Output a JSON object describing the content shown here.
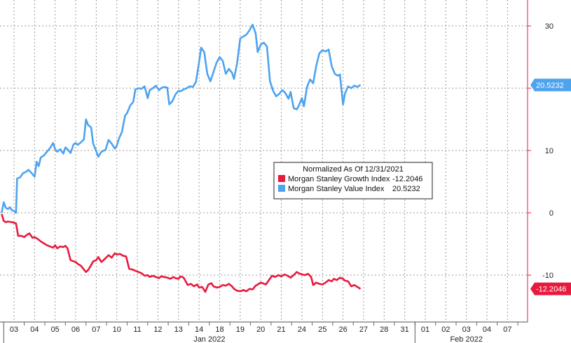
{
  "chart_data": {
    "type": "line",
    "title": "",
    "legend": {
      "title": "Normalized As Of 12/31/2021",
      "placement": "center",
      "entries": [
        {
          "label": "Morgan Stanley Growth Index",
          "value": "-12.2046",
          "color": "#e8193c"
        },
        {
          "label": "Morgan Stanley Value Index",
          "value": "20.5232",
          "color": "#4da3ee"
        }
      ]
    },
    "xlabel": "",
    "ylabel": "",
    "ylim": [
      -17,
      38
    ],
    "y_ticks": [
      -10,
      0,
      10,
      20,
      30
    ],
    "y_tick_labels": [
      "-10",
      "0",
      "10",
      "20",
      "30"
    ],
    "grid": true,
    "x_ticks": [
      "03",
      "04",
      "05",
      "06",
      "07",
      "10",
      "11",
      "12",
      "13",
      "14",
      "18",
      "19",
      "20",
      "21",
      "24",
      "25",
      "26",
      "27",
      "28",
      "31",
      "01",
      "02",
      "03",
      "04",
      "07"
    ],
    "month_labels": [
      {
        "label": "Jan 2022",
        "from": 0,
        "to": 19
      },
      {
        "label": "Feb 2022",
        "from": 20,
        "to": 24
      }
    ],
    "last_value_tags": [
      {
        "series": "Morgan Stanley Value Index",
        "label": "20.5232",
        "value": 20.5232,
        "color": "#4da3ee"
      },
      {
        "series": "Morgan Stanley Growth Index",
        "label": "-12.2046",
        "value": -12.2046,
        "color": "#e8193c"
      }
    ],
    "series": [
      {
        "name": "Morgan Stanley Value Index",
        "color": "#4da3ee",
        "points": [
          [
            -0.6,
            0
          ],
          [
            -0.5,
            1.7
          ],
          [
            -0.4,
            0.8
          ],
          [
            -0.3,
            0.6
          ],
          [
            -0.2,
            0.9
          ],
          [
            -0.1,
            0.4
          ],
          [
            0.0,
            0.3
          ],
          [
            0.1,
            0
          ],
          [
            0.15,
            5.5
          ],
          [
            0.3,
            5.7
          ],
          [
            0.45,
            6.4
          ],
          [
            0.55,
            6.5
          ],
          [
            0.7,
            6.9
          ],
          [
            0.85,
            6.4
          ],
          [
            1.0,
            5.8
          ],
          [
            1.1,
            8.2
          ],
          [
            1.2,
            7.5
          ],
          [
            1.3,
            8.9
          ],
          [
            1.45,
            9.2
          ],
          [
            1.6,
            9.8
          ],
          [
            1.75,
            10.4
          ],
          [
            1.9,
            11.2
          ],
          [
            2.0,
            10.2
          ],
          [
            2.1,
            9.8
          ],
          [
            2.25,
            10.2
          ],
          [
            2.4,
            9.5
          ],
          [
            2.5,
            10.5
          ],
          [
            2.6,
            10.2
          ],
          [
            2.75,
            9.6
          ],
          [
            2.9,
            11.0
          ],
          [
            3.0,
            11.2
          ],
          [
            3.1,
            10.9
          ],
          [
            3.25,
            11.3
          ],
          [
            3.4,
            11.8
          ],
          [
            3.5,
            15.0
          ],
          [
            3.6,
            14.1
          ],
          [
            3.75,
            13.7
          ],
          [
            3.85,
            11.1
          ],
          [
            4.0,
            9.9
          ],
          [
            4.1,
            9.0
          ],
          [
            4.25,
            9.8
          ],
          [
            4.45,
            10.1
          ],
          [
            4.6,
            11.7
          ],
          [
            4.75,
            11.1
          ],
          [
            4.9,
            10.3
          ],
          [
            5.0,
            10.8
          ],
          [
            5.1,
            11.9
          ],
          [
            5.25,
            13.0
          ],
          [
            5.4,
            15.6
          ],
          [
            5.5,
            16.0
          ],
          [
            5.65,
            17.2
          ],
          [
            5.8,
            17.8
          ],
          [
            5.9,
            19.8
          ],
          [
            6.05,
            20.0
          ],
          [
            6.2,
            19.9
          ],
          [
            6.35,
            20.3
          ],
          [
            6.5,
            18.4
          ],
          [
            6.6,
            19.7
          ],
          [
            6.75,
            20.0
          ],
          [
            6.9,
            20.4
          ],
          [
            7.05,
            19.7
          ],
          [
            7.15,
            20.0
          ],
          [
            7.3,
            20.2
          ],
          [
            7.45,
            20.1
          ],
          [
            7.55,
            17.4
          ],
          [
            7.7,
            17.9
          ],
          [
            7.85,
            19.0
          ],
          [
            8.0,
            19.6
          ],
          [
            8.1,
            19.5
          ],
          [
            8.25,
            19.8
          ],
          [
            8.4,
            20.0
          ],
          [
            8.55,
            20.3
          ],
          [
            8.7,
            20.2
          ],
          [
            8.85,
            21.0
          ],
          [
            9.0,
            24.2
          ],
          [
            9.1,
            26.5
          ],
          [
            9.25,
            25.8
          ],
          [
            9.4,
            22.3
          ],
          [
            9.55,
            21.1
          ],
          [
            9.7,
            22.6
          ],
          [
            9.85,
            24.1
          ],
          [
            10.0,
            25.0
          ],
          [
            10.15,
            24.4
          ],
          [
            10.3,
            22.3
          ],
          [
            10.45,
            23.1
          ],
          [
            10.6,
            22.5
          ],
          [
            10.7,
            21.5
          ],
          [
            10.85,
            24.0
          ],
          [
            11.0,
            28.0
          ],
          [
            11.15,
            28.3
          ],
          [
            11.3,
            28.6
          ],
          [
            11.45,
            29.3
          ],
          [
            11.6,
            30.2
          ],
          [
            11.75,
            28.8
          ],
          [
            11.85,
            25.8
          ],
          [
            12.0,
            27.0
          ],
          [
            12.15,
            27.3
          ],
          [
            12.3,
            26.7
          ],
          [
            12.45,
            21.1
          ],
          [
            12.6,
            19.6
          ],
          [
            12.75,
            18.7
          ],
          [
            12.9,
            19.1
          ],
          [
            13.05,
            19.7
          ],
          [
            13.2,
            19.2
          ],
          [
            13.35,
            18.3
          ],
          [
            13.45,
            19.4
          ],
          [
            13.6,
            16.8
          ],
          [
            13.75,
            16.6
          ],
          [
            13.85,
            17.2
          ],
          [
            14.0,
            18.4
          ],
          [
            14.1,
            17.1
          ],
          [
            14.25,
            20.2
          ],
          [
            14.4,
            21.4
          ],
          [
            14.55,
            20.8
          ],
          [
            14.7,
            23.6
          ],
          [
            14.85,
            25.6
          ],
          [
            15.0,
            26.1
          ],
          [
            15.15,
            25.9
          ],
          [
            15.3,
            26.2
          ],
          [
            15.45,
            23.5
          ],
          [
            15.6,
            22.3
          ],
          [
            15.75,
            22.0
          ],
          [
            15.85,
            22.2
          ],
          [
            16.0,
            17.4
          ],
          [
            16.1,
            19.2
          ],
          [
            16.25,
            20.3
          ],
          [
            16.4,
            20.0
          ],
          [
            16.55,
            20.4
          ],
          [
            16.7,
            20.2
          ],
          [
            16.85,
            20.5232
          ]
        ]
      },
      {
        "name": "Morgan Stanley Growth Index",
        "color": "#e8193c",
        "points": [
          [
            -0.6,
            -0.2
          ],
          [
            -0.5,
            -1.3
          ],
          [
            -0.4,
            -1.5
          ],
          [
            -0.3,
            -1.4
          ],
          [
            -0.1,
            -1.5
          ],
          [
            0.0,
            -1.6
          ],
          [
            0.1,
            -1.7
          ],
          [
            0.2,
            -3.7
          ],
          [
            0.35,
            -3.7
          ],
          [
            0.5,
            -3.9
          ],
          [
            0.6,
            -3.6
          ],
          [
            0.75,
            -3.3
          ],
          [
            0.9,
            -4.0
          ],
          [
            1.0,
            -3.9
          ],
          [
            1.15,
            -4.2
          ],
          [
            1.3,
            -4.6
          ],
          [
            1.45,
            -4.9
          ],
          [
            1.6,
            -5.2
          ],
          [
            1.75,
            -5.4
          ],
          [
            1.9,
            -5.6
          ],
          [
            2.0,
            -5.2
          ],
          [
            2.1,
            -5.7
          ],
          [
            2.25,
            -5.4
          ],
          [
            2.4,
            -5.5
          ],
          [
            2.5,
            -5.3
          ],
          [
            2.6,
            -5.7
          ],
          [
            2.75,
            -7.6
          ],
          [
            2.9,
            -7.8
          ],
          [
            3.0,
            -7.9
          ],
          [
            3.1,
            -8.2
          ],
          [
            3.25,
            -8.5
          ],
          [
            3.4,
            -9.1
          ],
          [
            3.5,
            -9.5
          ],
          [
            3.6,
            -9.2
          ],
          [
            3.75,
            -8.4
          ],
          [
            3.85,
            -7.8
          ],
          [
            4.0,
            -7.6
          ],
          [
            4.1,
            -7.1
          ],
          [
            4.25,
            -7.9
          ],
          [
            4.45,
            -7.3
          ],
          [
            4.6,
            -6.8
          ],
          [
            4.75,
            -7.2
          ],
          [
            4.9,
            -6.5
          ],
          [
            5.0,
            -6.7
          ],
          [
            5.15,
            -6.6
          ],
          [
            5.3,
            -6.9
          ],
          [
            5.45,
            -7.0
          ],
          [
            5.6,
            -9.0
          ],
          [
            5.75,
            -9.1
          ],
          [
            5.9,
            -9.3
          ],
          [
            6.05,
            -9.5
          ],
          [
            6.2,
            -9.7
          ],
          [
            6.35,
            -10.1
          ],
          [
            6.5,
            -10.0
          ],
          [
            6.6,
            -10.3
          ],
          [
            6.75,
            -10.1
          ],
          [
            6.9,
            -10.3
          ],
          [
            7.05,
            -10.5
          ],
          [
            7.15,
            -10.2
          ],
          [
            7.3,
            -10.3
          ],
          [
            7.45,
            -10.4
          ],
          [
            7.6,
            -10.6
          ],
          [
            7.75,
            -10.3
          ],
          [
            7.85,
            -10.5
          ],
          [
            8.0,
            -10.6
          ],
          [
            8.1,
            -10.2
          ],
          [
            8.25,
            -10.4
          ],
          [
            8.45,
            -11.6
          ],
          [
            8.6,
            -11.4
          ],
          [
            8.75,
            -11.8
          ],
          [
            8.9,
            -11.5
          ],
          [
            9.0,
            -12.0
          ],
          [
            9.15,
            -11.9
          ],
          [
            9.3,
            -12.7
          ],
          [
            9.45,
            -11.5
          ],
          [
            9.6,
            -11.3
          ],
          [
            9.7,
            -11.8
          ],
          [
            9.85,
            -12.0
          ],
          [
            10.0,
            -11.9
          ],
          [
            10.15,
            -11.6
          ],
          [
            10.3,
            -11.7
          ],
          [
            10.45,
            -11.4
          ],
          [
            10.6,
            -11.8
          ],
          [
            10.7,
            -12.2
          ],
          [
            10.85,
            -12.5
          ],
          [
            11.0,
            -12.6
          ],
          [
            11.15,
            -12.4
          ],
          [
            11.3,
            -12.6
          ],
          [
            11.45,
            -12.2
          ],
          [
            11.6,
            -12.3
          ],
          [
            11.75,
            -11.7
          ],
          [
            11.85,
            -11.5
          ],
          [
            12.0,
            -11.2
          ],
          [
            12.1,
            -11.3
          ],
          [
            12.25,
            -11.5
          ],
          [
            12.4,
            -10.8
          ],
          [
            12.55,
            -10.1
          ],
          [
            12.7,
            -10.3
          ],
          [
            12.85,
            -10.0
          ],
          [
            13.0,
            -10.2
          ],
          [
            13.15,
            -9.9
          ],
          [
            13.3,
            -10.1
          ],
          [
            13.45,
            -10.4
          ],
          [
            13.6,
            -10.0
          ],
          [
            13.75,
            -9.5
          ],
          [
            13.85,
            -9.7
          ],
          [
            14.0,
            -9.9
          ],
          [
            14.15,
            -10.0
          ],
          [
            14.3,
            -9.8
          ],
          [
            14.45,
            -10.3
          ],
          [
            14.55,
            -11.6
          ],
          [
            14.7,
            -11.2
          ],
          [
            14.85,
            -11.4
          ],
          [
            15.0,
            -11.5
          ],
          [
            15.15,
            -11.2
          ],
          [
            15.3,
            -10.8
          ],
          [
            15.45,
            -11.0
          ],
          [
            15.55,
            -10.6
          ],
          [
            15.7,
            -10.8
          ],
          [
            15.85,
            -10.4
          ],
          [
            16.0,
            -10.6
          ],
          [
            16.1,
            -10.9
          ],
          [
            16.25,
            -11.0
          ],
          [
            16.4,
            -11.8
          ],
          [
            16.55,
            -11.6
          ],
          [
            16.7,
            -11.9
          ],
          [
            16.85,
            -12.2046
          ]
        ]
      }
    ]
  }
}
